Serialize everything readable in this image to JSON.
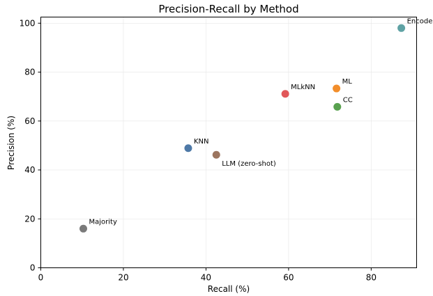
{
  "chart_data": {
    "type": "scatter",
    "title": "Precision-Recall by Method",
    "xlabel": "Recall (%)",
    "ylabel": "Precision (%)",
    "xlim": [
      0,
      91
    ],
    "ylim": [
      0,
      102.5
    ],
    "xticks": [
      0,
      20,
      40,
      60,
      80
    ],
    "yticks": [
      0,
      20,
      40,
      60,
      80,
      100
    ],
    "grid": true,
    "points": [
      {
        "label": "Encoder",
        "x": 87.3,
        "y": 98.0,
        "color": "#5fa2a4"
      },
      {
        "label": "ML",
        "x": 71.6,
        "y": 73.3,
        "color": "#f28e2b"
      },
      {
        "label": "MLkNN",
        "x": 59.2,
        "y": 71.1,
        "color": "#e15759"
      },
      {
        "label": "CC",
        "x": 71.8,
        "y": 65.8,
        "color": "#59a14f"
      },
      {
        "label": "KNN",
        "x": 35.7,
        "y": 48.9,
        "color": "#4e79a7"
      },
      {
        "label": "LLM (zero-shot)",
        "x": 42.5,
        "y": 46.2,
        "color": "#9c755f"
      },
      {
        "label": "Majority",
        "x": 10.3,
        "y": 16.0,
        "color": "#7a7a7a"
      }
    ]
  }
}
